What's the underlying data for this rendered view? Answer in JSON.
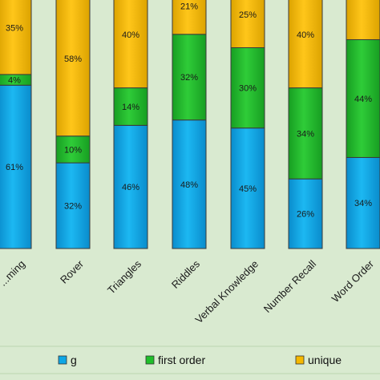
{
  "chart_data": {
    "type": "bar",
    "stacked": true,
    "normalized": true,
    "categories": [
      "...ming",
      "Rover",
      "Triangles",
      "Riddles",
      "Verbal Knowledge",
      "Number Recall",
      "Word Order"
    ],
    "series": [
      {
        "name": "g",
        "color": "#0ea7e6",
        "values": [
          61,
          32,
          46,
          48,
          45,
          26,
          34
        ],
        "labels": [
          "61%",
          "32%",
          "46%",
          "48%",
          "45%",
          "26%",
          "34%"
        ]
      },
      {
        "name": "first order",
        "color": "#1fbf2a",
        "values": [
          4,
          10,
          14,
          32,
          30,
          34,
          44
        ],
        "labels": [
          "4%",
          "10%",
          "14%",
          "32%",
          "30%",
          "34%",
          "44%"
        ]
      },
      {
        "name": "unique",
        "color": "#f5b800",
        "values": [
          35,
          58,
          40,
          21,
          25,
          40,
          22
        ],
        "labels": [
          "35%",
          "58%",
          "40%",
          "21%",
          "25%",
          "40%",
          ""
        ]
      }
    ],
    "ylim": [
      0,
      100
    ],
    "grid": false,
    "legend_position": "bottom"
  }
}
